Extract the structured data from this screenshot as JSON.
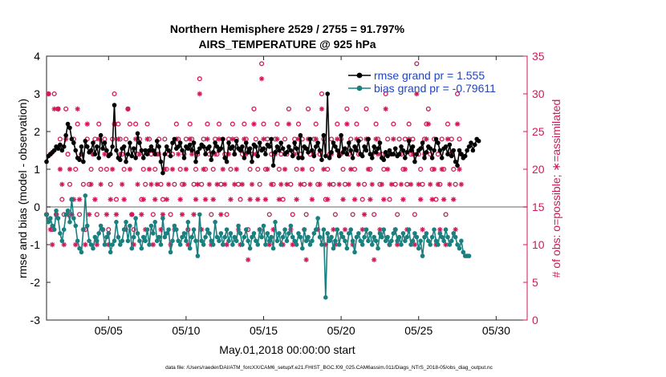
{
  "chart_data": {
    "type": "line",
    "title_line1": "Northern Hemisphere 2529 / 2755 = 91.797%",
    "title_line2": "AIRS_TEMPERATURE @ 925 hPa",
    "xlabel": "May.01,2018 00:00:00 start",
    "ylabel_left": "rmse and bias (model - observation)",
    "ylabel_right": "# of obs: o=possible; ∗=assimilated",
    "footer": "data file: /Users/raeder/DAI/ATM_forcXX/CAM6_setup/f.e21.FHIST_BGC.f09_025.CAM6assim.011/Diags_NTrS_2018-05/obs_diag_output.nc",
    "xlim": [
      1.0,
      32.0
    ],
    "ylim_left": [
      -3,
      4
    ],
    "ylim_right": [
      0,
      35
    ],
    "left_ticks": [
      "-3",
      "-2",
      "-1",
      "0",
      "1",
      "2",
      "3",
      "4"
    ],
    "right_ticks": [
      "0",
      "5",
      "10",
      "15",
      "20",
      "25",
      "30",
      "35"
    ],
    "x_ticks": [
      {
        "value": 5,
        "label": "05/05"
      },
      {
        "value": 10,
        "label": "05/10"
      },
      {
        "value": 15,
        "label": "05/15"
      },
      {
        "value": 20,
        "label": "05/20"
      },
      {
        "value": 25,
        "label": "05/25"
      },
      {
        "value": 30,
        "label": "05/30"
      }
    ],
    "legend": {
      "rmse": "rmse grand pr = 1.555",
      "bias": "bias grand pr = -0.79611",
      "placement": "top-right"
    },
    "colors": {
      "rmse": "#000000",
      "bias": "#1a7f7f",
      "obs": "#d0185a",
      "zero_line": "#9a9a9a"
    },
    "series": [
      {
        "name": "rmse",
        "x_start": 1.0,
        "x_step": 0.125,
        "values": [
          1.2,
          1.35,
          1.4,
          1.45,
          1.5,
          1.6,
          1.55,
          1.65,
          1.5,
          1.6,
          1.9,
          2.2,
          2.1,
          1.8,
          1.7,
          1.5,
          1.3,
          1.25,
          1.6,
          1.2,
          1.75,
          1.6,
          1.45,
          1.5,
          1.7,
          1.4,
          1.6,
          1.3,
          1.9,
          1.55,
          1.7,
          1.5,
          1.35,
          1.4,
          1.6,
          2.7,
          1.5,
          1.3,
          1.25,
          1.55,
          1.6,
          1.2,
          1.4,
          1.7,
          1.35,
          1.55,
          1.3,
          1.95,
          1.7,
          1.5,
          1.3,
          1.5,
          1.4,
          1.5,
          1.6,
          1.5,
          1.4,
          1.75,
          1.6,
          1.2,
          0.9,
          1.4,
          1.6,
          1.5,
          1.35,
          1.7,
          1.8,
          1.55,
          1.6,
          1.7,
          1.5,
          1.3,
          1.6,
          1.55,
          1.65,
          1.5,
          1.7,
          1.2,
          1.45,
          1.55,
          1.65,
          1.6,
          1.4,
          1.55,
          1.6,
          1.25,
          1.45,
          1.7,
          1.6,
          1.5,
          1.55,
          1.8,
          1.3,
          1.2,
          1.7,
          1.55,
          1.6,
          1.4,
          1.75,
          1.55,
          1.5,
          1.6,
          1.3,
          1.7,
          1.45,
          1.55,
          1.2,
          1.65,
          1.6,
          1.35,
          1.7,
          1.5,
          1.55,
          1.4,
          1.65,
          1.6,
          1.8,
          1.1,
          1.45,
          1.6,
          1.5,
          1.7,
          1.55,
          1.4,
          1.45,
          1.6,
          1.5,
          1.35,
          1.7,
          1.55,
          1.3,
          1.9,
          1.3,
          1.6,
          1.55,
          1.45,
          1.8,
          1.5,
          1.35,
          1.6,
          1.7,
          1.5,
          1.25,
          1.9,
          1.35,
          3.0,
          1.3,
          1.45,
          1.7,
          1.6,
          1.5,
          1.35,
          1.9,
          1.45,
          1.55,
          1.4,
          1.7,
          1.5,
          1.3,
          1.6,
          1.5,
          1.75,
          1.4,
          1.35,
          1.6,
          1.5,
          1.8,
          1.4,
          1.3,
          1.6,
          1.45,
          1.55,
          1.7,
          1.3,
          1.25,
          1.45,
          1.35,
          1.5,
          1.4,
          1.4,
          1.55,
          1.35,
          1.4,
          1.6,
          1.5,
          1.3,
          1.45,
          1.75,
          1.5,
          1.6,
          1.2,
          1.4,
          1.5,
          1.55,
          1.7,
          1.3,
          1.45,
          1.6,
          1.55,
          1.3,
          1.5,
          1.8,
          1.7,
          1.5,
          1.3,
          1.55,
          1.6,
          1.4,
          1.65,
          1.35,
          1.5,
          1.2,
          1.1,
          1.5,
          1.4,
          1.3,
          1.35,
          1.5,
          1.6,
          1.7,
          1.5,
          1.65,
          1.8,
          1.75
        ]
      },
      {
        "name": "bias",
        "x_start": 1.0,
        "x_step": 0.125,
        "values": [
          -0.2,
          -0.4,
          -0.3,
          -0.5,
          -0.6,
          -0.1,
          -0.3,
          -0.7,
          -0.9,
          -0.6,
          -0.2,
          -0.1,
          -0.4,
          0.2,
          -0.3,
          -0.5,
          -0.9,
          -1.1,
          -1.2,
          -0.6,
          0.3,
          -0.5,
          -0.9,
          -1.0,
          -1.1,
          -0.8,
          -0.9,
          -0.7,
          -0.5,
          -0.6,
          -1.0,
          -0.8,
          -0.7,
          -1.2,
          -1.0,
          -0.9,
          -0.4,
          -0.8,
          -1.0,
          -0.9,
          -0.6,
          -0.4,
          -0.9,
          -0.5,
          -1.1,
          -0.8,
          -0.3,
          -0.7,
          -0.9,
          -1.1,
          -0.8,
          -0.9,
          -0.6,
          -1.0,
          -0.5,
          -0.7,
          -0.4,
          -0.9,
          -0.8,
          -1.0,
          -0.3,
          -0.8,
          -0.7,
          -0.6,
          -1.2,
          -0.9,
          -0.5,
          -0.6,
          -0.9,
          -1.0,
          -0.8,
          -0.7,
          -0.9,
          -0.4,
          -1.1,
          -0.8,
          -0.6,
          -0.9,
          -1.3,
          -0.2,
          -0.9,
          -1.0,
          -0.8,
          -0.6,
          -0.7,
          -0.9,
          -1.0,
          -0.4,
          -0.8,
          -0.9,
          -0.7,
          -1.0,
          -0.8,
          -0.6,
          -0.9,
          -0.7,
          -1.0,
          -0.8,
          -0.9,
          -0.5,
          -0.7,
          -1.0,
          -0.8,
          -0.6,
          -0.9,
          -1.1,
          -0.8,
          -0.7,
          -0.9,
          -1.0,
          -0.6,
          -0.8,
          -0.5,
          -1.0,
          -0.7,
          -0.9,
          -0.8,
          -1.1,
          -0.4,
          -0.9,
          -0.7,
          -1.0,
          -0.8,
          -0.6,
          -0.9,
          -0.7,
          -0.5,
          -0.8,
          -0.9,
          -1.0,
          -0.7,
          -0.8,
          -1.1,
          -0.6,
          -0.9,
          -0.8,
          -1.0,
          -0.9,
          -0.7,
          -0.6,
          -0.3,
          -0.8,
          -1.0,
          -0.6,
          -2.4,
          -0.7,
          -0.9,
          -0.8,
          -1.1,
          -0.9,
          -0.6,
          -1.0,
          -0.7,
          -0.8,
          -0.9,
          -1.1,
          -0.7,
          -0.6,
          -0.9,
          -1.2,
          -0.8,
          -0.7,
          -0.9,
          -1.0,
          -0.8,
          -0.6,
          -0.9,
          -0.7,
          -1.0,
          -0.8,
          -0.9,
          -1.1,
          -0.7,
          -0.8,
          -0.6,
          -0.9,
          -0.8,
          -1.0,
          -0.9,
          -0.7,
          -0.6,
          -0.9,
          -0.8,
          -1.0,
          -0.7,
          -0.9,
          -0.8,
          -0.6,
          -1.0,
          -0.9,
          -0.7,
          -0.8,
          -1.1,
          -0.9,
          -1.3,
          -0.8,
          -0.7,
          -0.9,
          -1.0,
          -0.8,
          -0.6,
          -0.9,
          -1.0,
          -0.7,
          -0.8,
          -0.9,
          -0.6,
          -0.8,
          -1.0,
          -0.9,
          -0.7,
          -0.8,
          -1.0,
          -1.1,
          -0.9,
          -1.2,
          -1.3,
          -1.3,
          -1.3
        ]
      },
      {
        "name": "obs_possible",
        "marker": "o",
        "x_start": 1.0,
        "x_step": 0.125,
        "values": [
          14,
          30,
          22,
          12,
          30,
          14,
          28,
          24,
          16,
          14,
          28,
          22,
          18,
          16,
          24,
          20,
          26,
          14,
          22,
          18,
          12,
          24,
          18,
          20,
          22,
          24,
          14,
          26,
          20,
          12,
          24,
          20,
          12,
          18,
          24,
          30,
          16,
          26,
          24,
          22,
          20,
          24,
          28,
          26,
          14,
          12,
          26,
          22,
          24,
          16,
          20,
          18,
          26,
          24,
          22,
          14,
          20,
          22,
          24,
          18,
          16,
          24,
          20,
          22,
          14,
          22,
          18,
          26,
          24,
          20,
          18,
          22,
          24,
          12,
          26,
          24,
          18,
          20,
          22,
          32,
          18,
          24,
          20,
          26,
          22,
          14,
          20,
          24,
          22,
          26,
          18,
          24,
          22,
          14,
          24,
          20,
          26,
          22,
          24,
          18,
          16,
          22,
          26,
          24,
          12,
          20,
          22,
          28,
          24,
          20,
          18,
          34,
          26,
          20,
          24,
          14,
          22,
          18,
          24,
          26,
          20,
          22,
          16,
          24,
          22,
          28,
          18,
          14,
          24,
          20,
          26,
          22,
          24,
          18,
          14,
          28,
          22,
          20,
          24,
          26,
          18,
          22,
          30,
          24,
          16,
          20,
          22,
          24,
          18,
          14,
          26,
          22,
          24,
          20,
          18,
          28,
          22,
          24,
          14,
          20,
          26,
          22,
          24,
          16,
          18,
          28,
          24,
          20,
          22,
          14,
          26,
          24,
          18,
          22,
          20,
          30,
          24,
          16,
          22,
          26,
          18,
          14,
          24,
          22,
          20,
          24,
          18,
          26,
          22,
          24,
          14,
          34,
          22,
          20,
          18,
          24,
          26,
          28,
          22,
          20,
          24,
          16,
          22,
          18,
          24,
          20,
          14,
          26,
          22,
          24,
          20,
          18,
          30,
          24,
          22
        ]
      },
      {
        "name": "obs_assimilated",
        "marker": "*",
        "x_start": 1.0,
        "x_step": 0.125,
        "values": [
          14,
          30,
          12,
          10,
          28,
          14,
          28,
          20,
          18,
          10,
          24,
          14,
          20,
          14,
          16,
          10,
          28,
          16,
          22,
          12,
          10,
          26,
          14,
          18,
          22,
          16,
          10,
          24,
          18,
          12,
          22,
          14,
          10,
          16,
          20,
          26,
          14,
          24,
          22,
          18,
          16,
          12,
          28,
          20,
          14,
          10,
          24,
          18,
          22,
          14,
          16,
          12,
          24,
          20,
          18,
          10,
          16,
          18,
          22,
          12,
          14,
          20,
          16,
          18,
          10,
          20,
          12,
          24,
          22,
          16,
          14,
          18,
          20,
          10,
          24,
          22,
          14,
          16,
          18,
          30,
          12,
          20,
          16,
          24,
          18,
          10,
          16,
          22,
          18,
          24,
          14,
          20,
          18,
          10,
          22,
          16,
          24,
          18,
          20,
          12,
          10,
          18,
          24,
          22,
          8,
          16,
          18,
          26,
          22,
          16,
          12,
          32,
          24,
          16,
          20,
          10,
          18,
          12,
          22,
          24,
          16,
          18,
          10,
          20,
          18,
          26,
          12,
          10,
          22,
          16,
          24,
          18,
          20,
          12,
          8,
          24,
          18,
          16,
          22,
          24,
          12,
          18,
          28,
          20,
          10,
          16,
          18,
          22,
          12,
          10,
          24,
          18,
          22,
          16,
          12,
          26,
          18,
          20,
          10,
          16,
          24,
          18,
          22,
          12,
          14,
          24,
          20,
          16,
          18,
          8,
          24,
          22,
          12,
          18,
          16,
          28,
          20,
          10,
          18,
          24,
          12,
          10,
          22,
          18,
          16,
          20,
          12,
          24,
          18,
          22,
          10,
          30,
          18,
          16,
          12,
          22,
          24,
          26,
          18,
          16,
          20,
          10,
          18,
          12,
          20,
          16,
          10,
          24,
          18,
          22,
          16,
          12,
          26,
          20,
          18
        ]
      }
    ]
  }
}
